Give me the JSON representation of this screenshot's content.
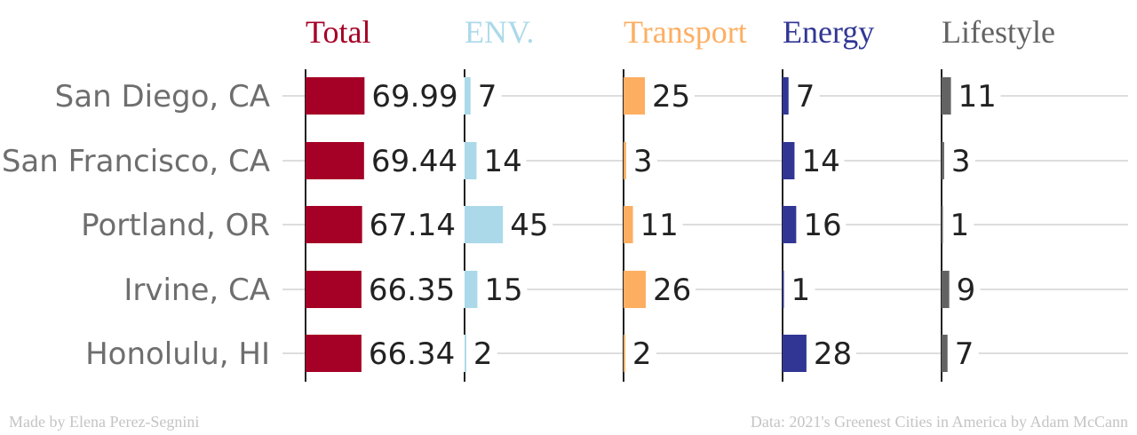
{
  "chart_data": {
    "type": "bar",
    "layout": "small-multiples-horizontal",
    "categories": [
      "San Diego, CA",
      "San Francisco, CA",
      "Portland, OR",
      "Irvine, CA",
      "Honolulu, HI"
    ],
    "series": [
      {
        "name": "Total",
        "color": "#a50026",
        "values": [
          69.99,
          69.44,
          67.14,
          66.35,
          66.34
        ],
        "labels": [
          "69.99",
          "69.44",
          "67.14",
          "66.35",
          "66.34"
        ],
        "xlim": [
          0,
          100
        ]
      },
      {
        "name": "ENV.",
        "color": "#abd9e9",
        "values": [
          7,
          14,
          45,
          15,
          2
        ],
        "labels": [
          "7",
          "14",
          "45",
          "15",
          "2"
        ],
        "xlim": [
          0,
          150
        ]
      },
      {
        "name": "Transport",
        "color": "#fdae61",
        "values": [
          25,
          3,
          11,
          26,
          2
        ],
        "labels": [
          "25",
          "3",
          "11",
          "26",
          "2"
        ],
        "xlim": [
          0,
          150
        ]
      },
      {
        "name": "Energy",
        "color": "#313695",
        "values": [
          7,
          14,
          16,
          1,
          28
        ],
        "labels": [
          "7",
          "14",
          "16",
          "1",
          "28"
        ],
        "xlim": [
          0,
          150
        ]
      },
      {
        "name": "Lifestyle",
        "color": "#636363",
        "values": [
          11,
          3,
          1,
          9,
          7
        ],
        "labels": [
          "11",
          "3",
          "1",
          "9",
          "7"
        ],
        "xlim": [
          0,
          150
        ]
      }
    ],
    "grid": true
  },
  "footer": {
    "credit": "Made by Elena Perez-Segnini",
    "source": "Data: 2021's Greenest Cities in America by Adam McCann"
  }
}
